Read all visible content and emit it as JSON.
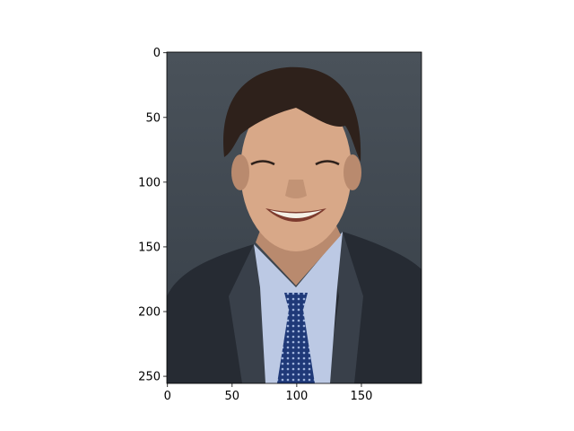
{
  "chart_data": {
    "type": "image",
    "xlim": [
      -0.5,
      196.5
    ],
    "ylim": [
      255.5,
      -0.5
    ],
    "image_extent": [
      -0.5,
      196.5,
      255.5,
      -0.5
    ],
    "x_ticks": [
      0,
      50,
      100,
      150
    ],
    "y_ticks": [
      0,
      50,
      100,
      150,
      200,
      250
    ],
    "x_tick_labels": [
      "0",
      "50",
      "100",
      "150"
    ],
    "y_tick_labels": [
      "0",
      "50",
      "100",
      "150",
      "200",
      "250"
    ],
    "title": "",
    "xlabel": "",
    "ylabel": "",
    "grid": false
  },
  "image": {
    "subject": "headshot-portrait",
    "colors": {
      "background": "#363e47",
      "background_light": "#4a525a",
      "hair": "#2e211b",
      "skin": "#d8a888",
      "skin_shadow": "#b98a6e",
      "suit": "#262b33",
      "suit_light": "#39404a",
      "shirt": "#bcc9e4",
      "tie": "#1f3978",
      "tie_pattern": "#9fb3dc",
      "teeth": "#f4f0e6",
      "mouth": "#7d3b2e"
    }
  }
}
